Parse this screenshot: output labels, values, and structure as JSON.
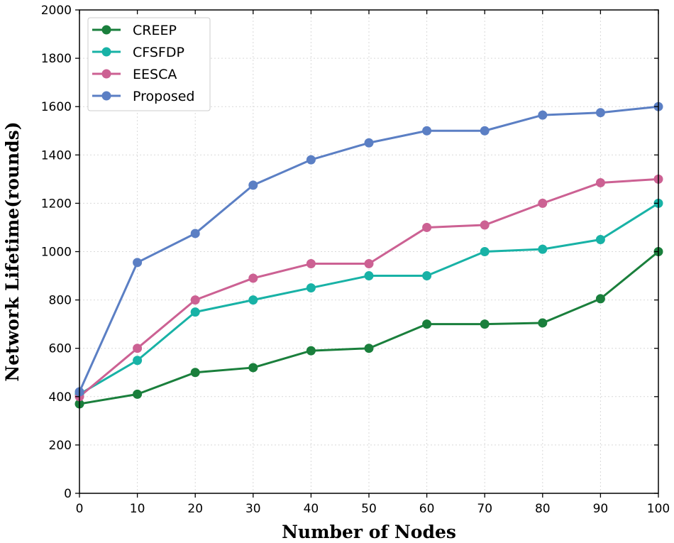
{
  "chart_data": {
    "type": "line",
    "xlabel": "Number of Nodes",
    "ylabel": "Network Lifetime(rounds)",
    "x": [
      0,
      10,
      20,
      30,
      40,
      50,
      60,
      70,
      80,
      90,
      100
    ],
    "xlim": [
      0,
      100
    ],
    "ylim": [
      0,
      2000
    ],
    "xticks": [
      0,
      10,
      20,
      30,
      40,
      50,
      60,
      70,
      80,
      90,
      100
    ],
    "yticks": [
      0,
      200,
      400,
      600,
      800,
      1000,
      1200,
      1400,
      1600,
      1800,
      2000
    ],
    "grid": true,
    "legend_position": "top-left",
    "series": [
      {
        "name": "CREEP",
        "color": "#1a7f3c",
        "values": [
          370,
          410,
          500,
          520,
          590,
          600,
          700,
          700,
          705,
          805,
          1000
        ]
      },
      {
        "name": "CFSFDP",
        "color": "#18b2a6",
        "values": [
          410,
          550,
          750,
          800,
          850,
          900,
          900,
          1000,
          1010,
          1050,
          1200
        ]
      },
      {
        "name": "EESCA",
        "color": "#cc6193",
        "values": [
          400,
          600,
          800,
          890,
          950,
          950,
          1100,
          1110,
          1200,
          1285,
          1300
        ]
      },
      {
        "name": "Proposed",
        "color": "#5b7fc4",
        "values": [
          420,
          955,
          1075,
          1275,
          1380,
          1450,
          1500,
          1500,
          1565,
          1575,
          1600
        ]
      }
    ]
  }
}
